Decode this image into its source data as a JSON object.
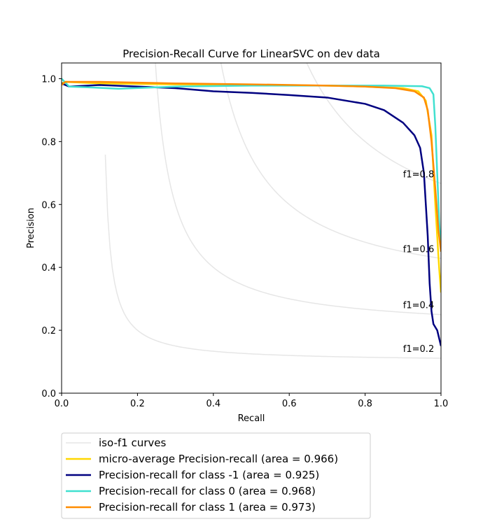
{
  "chart_data": {
    "type": "line",
    "title": "Precision-Recall Curve for LinearSVC on dev data",
    "xlabel": "Recall",
    "ylabel": "Precision",
    "xlim": [
      0.0,
      1.0
    ],
    "ylim": [
      0.0,
      1.05
    ],
    "xticks": [
      0.0,
      0.2,
      0.4,
      0.6,
      0.8,
      1.0
    ],
    "xtick_labels": [
      "0.0",
      "0.2",
      "0.4",
      "0.6",
      "0.8",
      "1.0"
    ],
    "yticks": [
      0.0,
      0.2,
      0.4,
      0.6,
      0.8,
      1.0
    ],
    "ytick_labels": [
      "0.0",
      "0.2",
      "0.4",
      "0.6",
      "0.8",
      "1.0"
    ],
    "grid": false,
    "legend_position": "below",
    "iso_f1": {
      "legend_label": "iso-f1 curves",
      "color": "#e6e6e6",
      "levels": [
        0.2,
        0.4,
        0.6,
        0.8
      ],
      "labels": [
        "f1=0.2",
        "f1=0.4",
        "f1=0.6",
        "f1=0.8"
      ]
    },
    "series": [
      {
        "name": "micro-average Precision-recall (area = 0.966)",
        "color": "#ffd700",
        "points": [
          [
            0.0,
            0.985
          ],
          [
            0.01,
            0.99
          ],
          [
            0.1,
            0.985
          ],
          [
            0.3,
            0.982
          ],
          [
            0.5,
            0.98
          ],
          [
            0.7,
            0.978
          ],
          [
            0.8,
            0.975
          ],
          [
            0.9,
            0.97
          ],
          [
            0.94,
            0.96
          ],
          [
            0.96,
            0.93
          ],
          [
            0.975,
            0.82
          ],
          [
            0.985,
            0.6
          ],
          [
            0.995,
            0.4
          ],
          [
            1.0,
            0.32
          ]
        ]
      },
      {
        "name": "Precision-recall for class -1 (area = 0.925)",
        "color": "#000080",
        "points": [
          [
            0.0,
            0.985
          ],
          [
            0.02,
            0.975
          ],
          [
            0.1,
            0.98
          ],
          [
            0.2,
            0.975
          ],
          [
            0.3,
            0.97
          ],
          [
            0.4,
            0.96
          ],
          [
            0.5,
            0.955
          ],
          [
            0.6,
            0.948
          ],
          [
            0.7,
            0.94
          ],
          [
            0.8,
            0.92
          ],
          [
            0.85,
            0.9
          ],
          [
            0.9,
            0.86
          ],
          [
            0.93,
            0.82
          ],
          [
            0.945,
            0.78
          ],
          [
            0.955,
            0.7
          ],
          [
            0.96,
            0.6
          ],
          [
            0.965,
            0.5
          ],
          [
            0.97,
            0.35
          ],
          [
            0.975,
            0.26
          ],
          [
            0.98,
            0.22
          ],
          [
            0.99,
            0.2
          ],
          [
            1.0,
            0.15
          ]
        ]
      },
      {
        "name": "Precision-recall for class 0 (area = 0.968)",
        "color": "#40e0d0",
        "points": [
          [
            0.0,
            1.0
          ],
          [
            0.02,
            0.975
          ],
          [
            0.08,
            0.972
          ],
          [
            0.15,
            0.968
          ],
          [
            0.3,
            0.975
          ],
          [
            0.5,
            0.978
          ],
          [
            0.7,
            0.978
          ],
          [
            0.85,
            0.978
          ],
          [
            0.95,
            0.976
          ],
          [
            0.97,
            0.97
          ],
          [
            0.98,
            0.95
          ],
          [
            0.985,
            0.85
          ],
          [
            0.99,
            0.7
          ],
          [
            0.995,
            0.55
          ],
          [
            1.0,
            0.45
          ]
        ]
      },
      {
        "name": "Precision-recall for class 1 (area = 0.973)",
        "color": "#ff8c00",
        "points": [
          [
            0.0,
            0.98
          ],
          [
            0.01,
            0.99
          ],
          [
            0.1,
            0.99
          ],
          [
            0.3,
            0.985
          ],
          [
            0.5,
            0.982
          ],
          [
            0.7,
            0.978
          ],
          [
            0.8,
            0.975
          ],
          [
            0.88,
            0.97
          ],
          [
            0.93,
            0.96
          ],
          [
            0.955,
            0.94
          ],
          [
            0.965,
            0.9
          ],
          [
            0.975,
            0.8
          ],
          [
            0.985,
            0.65
          ],
          [
            0.993,
            0.52
          ],
          [
            1.0,
            0.45
          ]
        ]
      }
    ]
  }
}
